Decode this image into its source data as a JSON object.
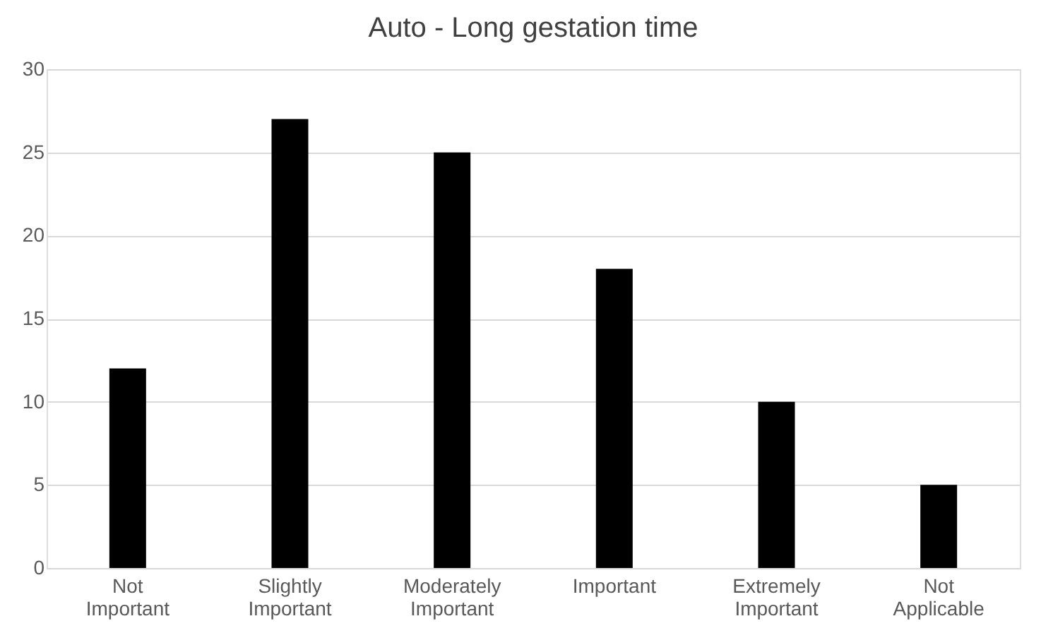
{
  "chart_data": {
    "type": "bar",
    "title": "Auto - Long gestation time",
    "categories": [
      "Not Important",
      "Slightly Important",
      "Moderately Important",
      "Important",
      "Extremely Important",
      "Not Applicable"
    ],
    "values": [
      12,
      27,
      25,
      18,
      10,
      5
    ],
    "color": "#000000",
    "ylim": [
      0,
      30
    ],
    "yticks": [
      0,
      5,
      10,
      15,
      20,
      25,
      30
    ],
    "grid": "y"
  }
}
